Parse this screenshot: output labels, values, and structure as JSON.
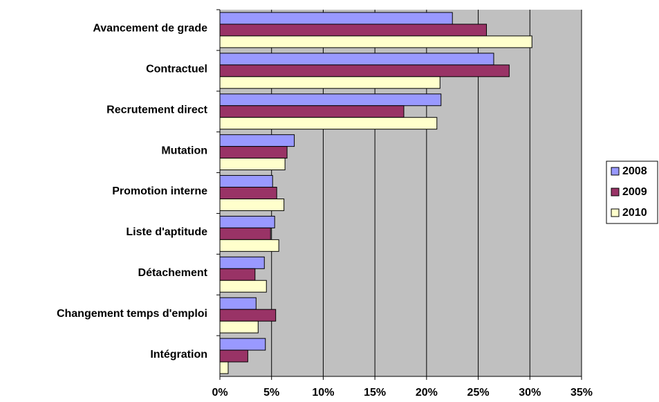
{
  "chart_data": {
    "type": "hbar",
    "categories": [
      "Avancement de grade",
      "Contractuel",
      "Recrutement direct",
      "Mutation",
      "Promotion interne",
      "Liste d'aptitude",
      "Détachement",
      "Changement temps d'emploi",
      "Intégration"
    ],
    "series": [
      {
        "name": "2008",
        "color": "#9999ff",
        "values": [
          22.5,
          26.5,
          21.4,
          7.2,
          5.1,
          5.3,
          4.3,
          3.5,
          4.4
        ]
      },
      {
        "name": "2009",
        "color": "#993366",
        "values": [
          25.8,
          28.0,
          17.8,
          6.5,
          5.5,
          4.9,
          3.4,
          5.4,
          2.7
        ]
      },
      {
        "name": "2010",
        "color": "#ffffcc",
        "values": [
          30.2,
          21.3,
          21.0,
          6.3,
          6.2,
          5.7,
          4.5,
          3.7,
          0.8
        ]
      }
    ],
    "xlim": [
      0,
      35
    ],
    "xticks": [
      {
        "value": 0,
        "label": "0%"
      },
      {
        "value": 5,
        "label": "5%"
      },
      {
        "value": 10,
        "label": "10%"
      },
      {
        "value": 15,
        "label": "15%"
      },
      {
        "value": 20,
        "label": "20%"
      },
      {
        "value": 25,
        "label": "25%"
      },
      {
        "value": 30,
        "label": "30%"
      },
      {
        "value": 35,
        "label": "35%"
      }
    ],
    "grid": true,
    "plot_background": "#c0c0c0",
    "legend": "right"
  }
}
